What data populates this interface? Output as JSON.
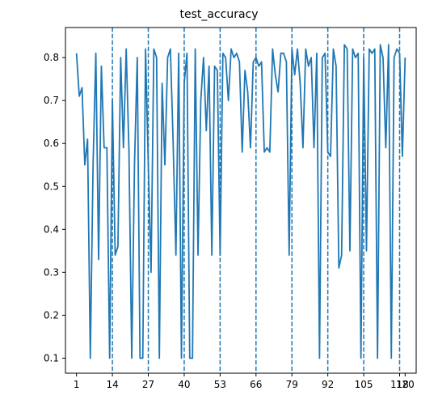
{
  "chart_data": {
    "type": "line",
    "title": "test_accuracy",
    "xlabel": "",
    "ylabel": "",
    "x_ticks": [
      1,
      14,
      27,
      40,
      53,
      66,
      79,
      92,
      105,
      118,
      120
    ],
    "y_ticks": [
      0.1,
      0.2,
      0.3,
      0.4,
      0.5,
      0.6,
      0.7,
      0.8
    ],
    "xlim": [
      -3.0,
      124.0
    ],
    "ylim": [
      0.065,
      0.87
    ],
    "vlines": [
      14,
      27,
      40,
      53,
      66,
      79,
      92,
      105,
      118
    ],
    "grid": false,
    "legend": "none",
    "colors": {
      "line": "#1f77b4",
      "vline": "#1f77b4",
      "axis": "#000000"
    },
    "series": [
      {
        "x": [
          1,
          2,
          3,
          4,
          5,
          6,
          7,
          8,
          9,
          10,
          11,
          12,
          13,
          14,
          15,
          16,
          17,
          18,
          19,
          20,
          21,
          22,
          23,
          24,
          25,
          26,
          27,
          28,
          29,
          30,
          31,
          32,
          33,
          34,
          35,
          36,
          37,
          38,
          39,
          40,
          41,
          42,
          43,
          44,
          45,
          46,
          47,
          48,
          49,
          50,
          51,
          52,
          53,
          54,
          55,
          56,
          57,
          58,
          59,
          60,
          61,
          62,
          63,
          64,
          65,
          66,
          67,
          68,
          69,
          70,
          71,
          72,
          73,
          74,
          75,
          76,
          77,
          78,
          79,
          80,
          81,
          82,
          83,
          84,
          85,
          86,
          87,
          88,
          89,
          90,
          91,
          92,
          93,
          94,
          95,
          96,
          97,
          98,
          99,
          100,
          101,
          102,
          103,
          104,
          105,
          106,
          107,
          108,
          109,
          110,
          111,
          112,
          113,
          114,
          115,
          116,
          117,
          118,
          119,
          120
        ],
        "values": [
          0.81,
          0.71,
          0.73,
          0.55,
          0.61,
          0.1,
          0.55,
          0.81,
          0.33,
          0.78,
          0.59,
          0.59,
          0.1,
          0.7,
          0.34,
          0.36,
          0.8,
          0.59,
          0.82,
          0.58,
          0.1,
          0.55,
          0.8,
          0.1,
          0.1,
          0.82,
          0.55,
          0.3,
          0.82,
          0.8,
          0.1,
          0.74,
          0.55,
          0.8,
          0.82,
          0.6,
          0.34,
          0.81,
          0.1,
          0.74,
          0.81,
          0.1,
          0.1,
          0.82,
          0.34,
          0.7,
          0.8,
          0.63,
          0.78,
          0.34,
          0.78,
          0.77,
          0.34,
          0.81,
          0.8,
          0.7,
          0.82,
          0.8,
          0.81,
          0.79,
          0.58,
          0.77,
          0.72,
          0.59,
          0.79,
          0.8,
          0.78,
          0.79,
          0.58,
          0.59,
          0.58,
          0.82,
          0.76,
          0.72,
          0.81,
          0.81,
          0.79,
          0.34,
          0.82,
          0.76,
          0.82,
          0.74,
          0.59,
          0.82,
          0.78,
          0.8,
          0.59,
          0.81,
          0.1,
          0.8,
          0.81,
          0.58,
          0.57,
          0.82,
          0.78,
          0.31,
          0.34,
          0.83,
          0.82,
          0.35,
          0.82,
          0.8,
          0.81,
          0.1,
          0.8,
          0.35,
          0.82,
          0.81,
          0.82,
          0.1,
          0.83,
          0.8,
          0.59,
          0.83,
          0.1,
          0.8,
          0.82,
          0.81,
          0.57,
          0.8
        ]
      }
    ]
  }
}
